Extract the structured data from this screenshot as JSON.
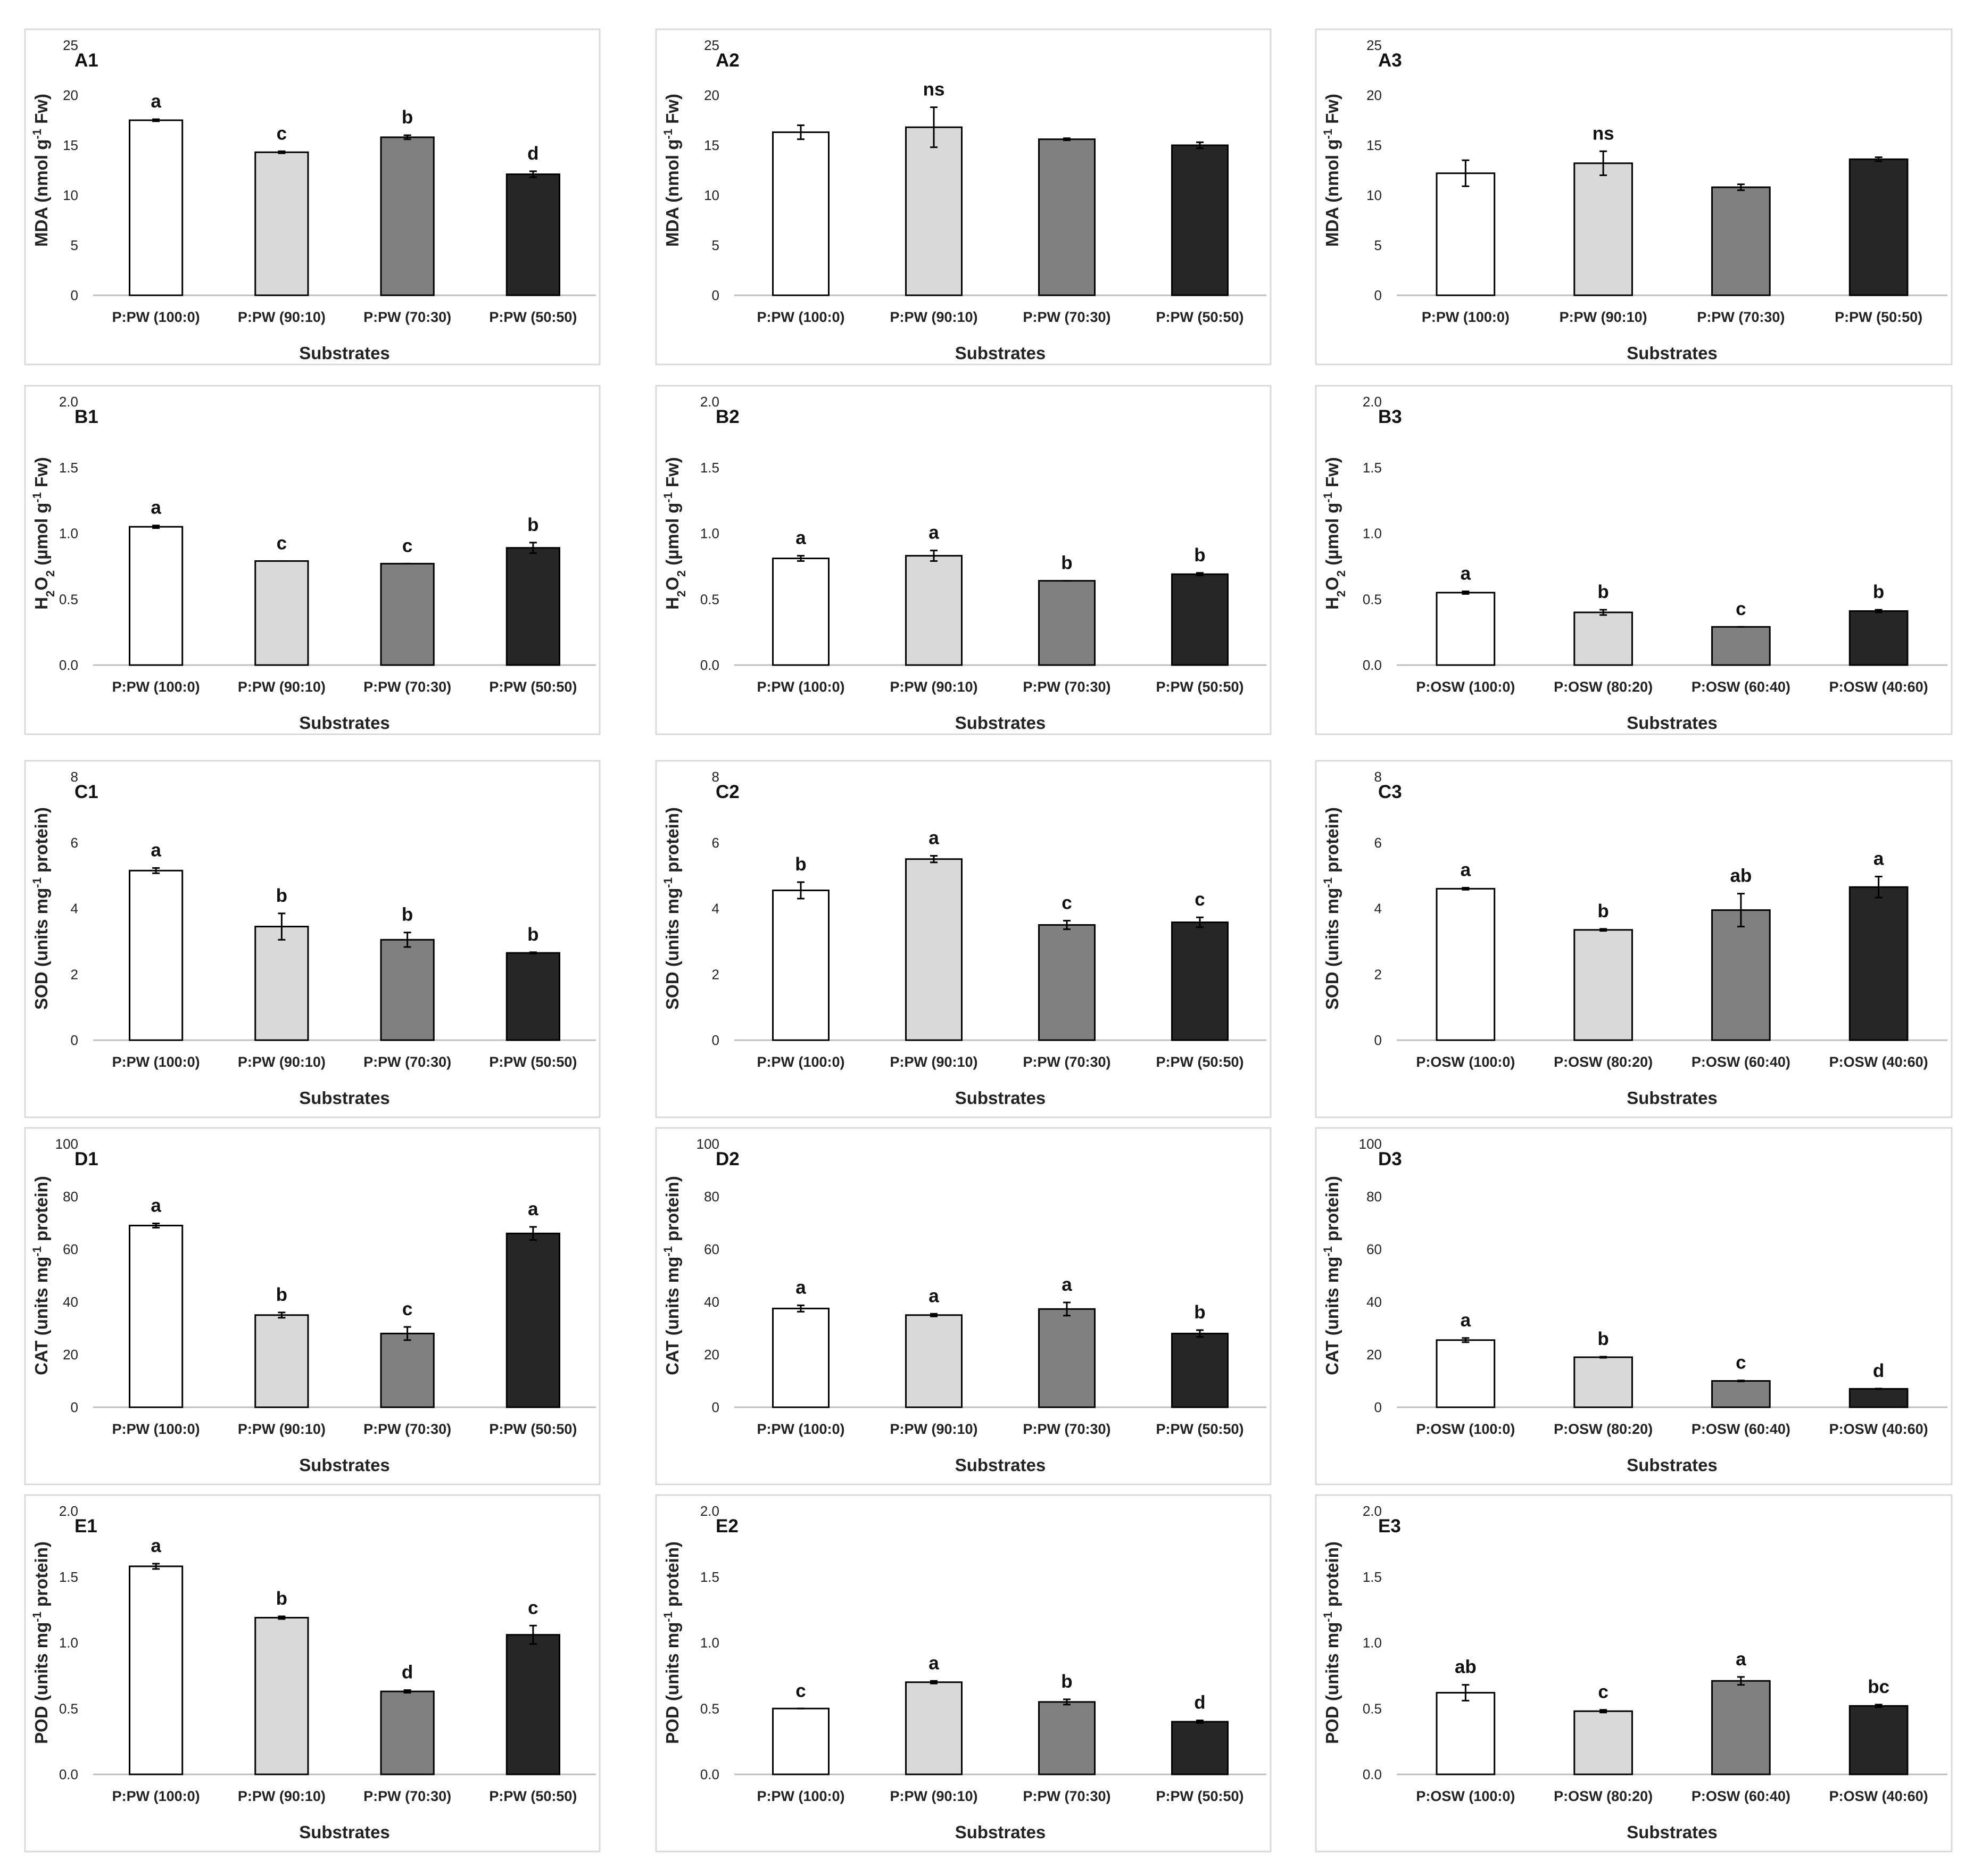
{
  "chart_data": [
    {
      "id": "A1",
      "type": "bar",
      "panel_label": "A1",
      "ylabel_main": "MDA (nmol g",
      "ylabel_sup": "-1",
      "ylabel_tail": " Fw)",
      "xlabel": "Substrates",
      "ylim": [
        0,
        25
      ],
      "yticks": [
        "0",
        "5",
        "10",
        "15",
        "20",
        "25"
      ],
      "categories": [
        "P:PW (100:0)",
        "P:PW (90:10)",
        "P:PW (70:30)",
        "P:PW (50:50)"
      ],
      "values": [
        17.5,
        14.3,
        15.8,
        12.1
      ],
      "errors": [
        0.1,
        0.1,
        0.2,
        0.3
      ],
      "sig": [
        "a",
        "c",
        "b",
        "d"
      ]
    },
    {
      "id": "A2",
      "type": "bar",
      "panel_label": "A2",
      "ylabel_main": "MDA (nmol g",
      "ylabel_sup": "-1",
      "ylabel_tail": " Fw)",
      "xlabel": "Substrates",
      "ylim": [
        0,
        25
      ],
      "yticks": [
        "0",
        "5",
        "10",
        "15",
        "20",
        "25"
      ],
      "categories": [
        "P:PW (100:0)",
        "P:PW (90:10)",
        "P:PW (70:30)",
        "P:PW (50:50)"
      ],
      "values": [
        16.3,
        16.8,
        15.6,
        15.0
      ],
      "errors": [
        0.7,
        2.0,
        0.1,
        0.3
      ],
      "sig": [
        "",
        "ns",
        "",
        ""
      ]
    },
    {
      "id": "A3",
      "type": "bar",
      "panel_label": "A3",
      "ylabel_main": "MDA (nmol g",
      "ylabel_sup": "-1",
      "ylabel_tail": " Fw)",
      "xlabel": "Substrates",
      "ylim": [
        0,
        25
      ],
      "yticks": [
        "0",
        "5",
        "10",
        "15",
        "20",
        "25"
      ],
      "categories": [
        "P:PW (100:0)",
        "P:PW (90:10)",
        "P:PW (70:30)",
        "P:PW (50:50)"
      ],
      "values": [
        12.2,
        13.2,
        10.8,
        13.6
      ],
      "errors": [
        1.3,
        1.2,
        0.3,
        0.2
      ],
      "sig": [
        "",
        "ns",
        "",
        ""
      ]
    },
    {
      "id": "B1",
      "type": "bar",
      "panel_label": "B1",
      "ylabel_main": "H",
      "ylabel_sub1": "2",
      "ylabel_mid": "O",
      "ylabel_sub2": "2",
      "ylabel_tail2": " (µmol g",
      "ylabel_sup": "-1",
      "ylabel_tail": " Fw)",
      "xlabel": "Substrates",
      "ylim": [
        0,
        2
      ],
      "yticks": [
        "0.0",
        "0.5",
        "1.0",
        "1.5",
        "2.0"
      ],
      "categories": [
        "P:PW (100:0)",
        "P:PW (90:10)",
        "P:PW (70:30)",
        "P:PW (50:50)"
      ],
      "values": [
        1.05,
        0.79,
        0.77,
        0.89
      ],
      "errors": [
        0.01,
        0.0,
        0.0,
        0.04
      ],
      "sig": [
        "a",
        "c",
        "c",
        "b"
      ]
    },
    {
      "id": "B2",
      "type": "bar",
      "panel_label": "B2",
      "ylabel_main": "H",
      "ylabel_sub1": "2",
      "ylabel_mid": "O",
      "ylabel_sub2": "2",
      "ylabel_tail2": " (µmol g",
      "ylabel_sup": "-1",
      "ylabel_tail": " Fw)",
      "xlabel": "Substrates",
      "ylim": [
        0,
        2
      ],
      "yticks": [
        "0.0",
        "0.5",
        "1.0",
        "1.5",
        "2.0"
      ],
      "categories": [
        "P:PW (100:0)",
        "P:PW (90:10)",
        "P:PW (70:30)",
        "P:PW (50:50)"
      ],
      "values": [
        0.81,
        0.83,
        0.64,
        0.69
      ],
      "errors": [
        0.02,
        0.04,
        0.0,
        0.01
      ],
      "sig": [
        "a",
        "a",
        "b",
        "b"
      ]
    },
    {
      "id": "B3",
      "type": "bar",
      "panel_label": "B3",
      "ylabel_main": "H",
      "ylabel_sub1": "2",
      "ylabel_mid": "O",
      "ylabel_sub2": "2",
      "ylabel_tail2": " (µmol g",
      "ylabel_sup": "-1",
      "ylabel_tail": " Fw)",
      "xlabel": "Substrates",
      "ylim": [
        0,
        2
      ],
      "yticks": [
        "0.0",
        "0.5",
        "1.0",
        "1.5",
        "2.0"
      ],
      "categories": [
        "P:OSW (100:0)",
        "P:OSW (80:20)",
        "P:OSW (60:40)",
        "P:OSW (40:60)"
      ],
      "values": [
        0.55,
        0.4,
        0.29,
        0.41
      ],
      "errors": [
        0.01,
        0.02,
        0.0,
        0.01
      ],
      "sig": [
        "a",
        "b",
        "c",
        "b"
      ]
    },
    {
      "id": "C1",
      "type": "bar",
      "panel_label": "C1",
      "ylabel_main": "SOD (units mg",
      "ylabel_sup": "-1",
      "ylabel_tail": " protein)",
      "xlabel": "Substrates",
      "ylim": [
        0,
        8
      ],
      "yticks": [
        "0",
        "2",
        "4",
        "6",
        "8"
      ],
      "categories": [
        "P:PW (100:0)",
        "P:PW (90:10)",
        "P:PW (70:30)",
        "P:PW (50:50)"
      ],
      "values": [
        5.15,
        3.45,
        3.05,
        2.65
      ],
      "errors": [
        0.08,
        0.4,
        0.22,
        0.02
      ],
      "sig": [
        "a",
        "b",
        "b",
        "b"
      ]
    },
    {
      "id": "C2",
      "type": "bar",
      "panel_label": "C2",
      "ylabel_main": "SOD (units mg",
      "ylabel_sup": "-1",
      "ylabel_tail": " protein)",
      "xlabel": "Substrates",
      "ylim": [
        0,
        8
      ],
      "yticks": [
        "0",
        "2",
        "4",
        "6",
        "8"
      ],
      "categories": [
        "P:PW (100:0)",
        "P:PW (90:10)",
        "P:PW (70:30)",
        "P:PW (50:50)"
      ],
      "values": [
        4.55,
        5.5,
        3.5,
        3.58
      ],
      "errors": [
        0.25,
        0.1,
        0.13,
        0.15
      ],
      "sig": [
        "b",
        "a",
        "c",
        "c"
      ]
    },
    {
      "id": "C3",
      "type": "bar",
      "panel_label": "C3",
      "ylabel_main": "SOD (units mg",
      "ylabel_sup": "-1",
      "ylabel_tail": " protein)",
      "xlabel": "Substrates",
      "ylim": [
        0,
        8
      ],
      "yticks": [
        "0",
        "2",
        "4",
        "6",
        "8"
      ],
      "categories": [
        "P:OSW (100:0)",
        "P:OSW (80:20)",
        "P:OSW (60:40)",
        "P:OSW (40:60)"
      ],
      "values": [
        4.6,
        3.35,
        3.95,
        4.65
      ],
      "errors": [
        0.03,
        0.03,
        0.5,
        0.32
      ],
      "sig": [
        "a",
        "b",
        "ab",
        "a"
      ]
    },
    {
      "id": "D1",
      "type": "bar",
      "panel_label": "D1",
      "ylabel_main": "CAT (units mg",
      "ylabel_sup": "-1",
      "ylabel_tail": " protein)",
      "xlabel": "Substrates",
      "ylim": [
        0,
        100
      ],
      "yticks": [
        "0",
        "20",
        "40",
        "60",
        "80",
        "100"
      ],
      "categories": [
        "P:PW (100:0)",
        "P:PW (90:10)",
        "P:PW (70:30)",
        "P:PW (50:50)"
      ],
      "values": [
        69,
        35,
        28,
        66
      ],
      "errors": [
        0.8,
        1.0,
        2.5,
        2.5
      ],
      "sig": [
        "a",
        "b",
        "c",
        "a"
      ]
    },
    {
      "id": "D2",
      "type": "bar",
      "panel_label": "D2",
      "ylabel_main": "CAT (units mg",
      "ylabel_sup": "-1",
      "ylabel_tail": " protein)",
      "xlabel": "Substrates",
      "ylim": [
        0,
        100
      ],
      "yticks": [
        "0",
        "20",
        "40",
        "60",
        "80",
        "100"
      ],
      "categories": [
        "P:PW (100:0)",
        "P:PW (90:10)",
        "P:PW (70:30)",
        "P:PW (50:50)"
      ],
      "values": [
        37.5,
        35,
        37.3,
        28
      ],
      "errors": [
        1.2,
        0.5,
        2.5,
        1.3
      ],
      "sig": [
        "a",
        "a",
        "a",
        "b"
      ]
    },
    {
      "id": "D3",
      "type": "bar",
      "panel_label": "D3",
      "ylabel_main": "CAT (units mg",
      "ylabel_sup": "-1",
      "ylabel_tail": " protein)",
      "xlabel": "Substrates",
      "ylim": [
        0,
        100
      ],
      "yticks": [
        "0",
        "20",
        "40",
        "60",
        "80",
        "100"
      ],
      "categories": [
        "P:OSW (100:0)",
        "P:OSW (80:20)",
        "P:OSW (60:40)",
        "P:OSW (40:60)"
      ],
      "values": [
        25.5,
        19,
        10,
        7
      ],
      "errors": [
        0.8,
        0.2,
        0.2,
        0.1
      ],
      "sig": [
        "a",
        "b",
        "c",
        "d"
      ]
    },
    {
      "id": "E1",
      "type": "bar",
      "panel_label": "E1",
      "ylabel_main": "POD (units mg",
      "ylabel_sup": "-1",
      "ylabel_tail": " protein)",
      "xlabel": "Substrates",
      "ylim": [
        0,
        2
      ],
      "yticks": [
        "0.0",
        "0.5",
        "1.0",
        "1.5",
        "2.0"
      ],
      "categories": [
        "P:PW (100:0)",
        "P:PW (90:10)",
        "P:PW (70:30)",
        "P:PW (50:50)"
      ],
      "values": [
        1.58,
        1.19,
        0.63,
        1.06
      ],
      "errors": [
        0.02,
        0.01,
        0.01,
        0.07
      ],
      "sig": [
        "a",
        "b",
        "d",
        "c"
      ]
    },
    {
      "id": "E2",
      "type": "bar",
      "panel_label": "E2",
      "ylabel_main": "POD (units mg",
      "ylabel_sup": "-1",
      "ylabel_tail": " protein)",
      "xlabel": "Substrates",
      "ylim": [
        0,
        2
      ],
      "yticks": [
        "0.0",
        "0.5",
        "1.0",
        "1.5",
        "2.0"
      ],
      "categories": [
        "P:PW (100:0)",
        "P:PW (90:10)",
        "P:PW (70:30)",
        "P:PW (50:50)"
      ],
      "values": [
        0.5,
        0.7,
        0.55,
        0.4
      ],
      "errors": [
        0.0,
        0.01,
        0.02,
        0.01
      ],
      "sig": [
        "c",
        "a",
        "b",
        "d"
      ]
    },
    {
      "id": "E3",
      "type": "bar",
      "panel_label": "E3",
      "ylabel_main": "POD (units mg",
      "ylabel_sup": "-1",
      "ylabel_tail": " protein)",
      "xlabel": "Substrates",
      "ylim": [
        0,
        2
      ],
      "yticks": [
        "0.0",
        "0.5",
        "1.0",
        "1.5",
        "2.0"
      ],
      "categories": [
        "P:OSW (100:0)",
        "P:OSW (80:20)",
        "P:OSW (60:40)",
        "P:OSW (40:60)"
      ],
      "values": [
        0.62,
        0.48,
        0.71,
        0.52
      ],
      "errors": [
        0.06,
        0.01,
        0.03,
        0.01
      ],
      "sig": [
        "ab",
        "c",
        "a",
        "bc"
      ]
    }
  ],
  "colors": {
    "series": [
      "#ffffff",
      "#d9d9d9",
      "#808080",
      "#262626"
    ],
    "bar_stroke": "#000000",
    "axis": "#bfbfbf",
    "panel_border": "#d9d9d9"
  }
}
